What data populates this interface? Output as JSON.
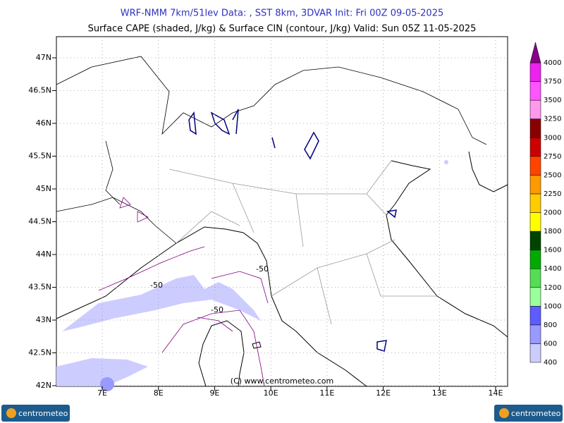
{
  "header": {
    "title": "WRF-NMM 7km/51lev  Data: , SST 8km, 3DVAR  Init: Fri 00Z 09-05-2025",
    "subtitle": "Surface CAPE (shaded, J/kg) & Surface CIN (contour, J/kg)  Valid: Sun 05Z 11-05-2025"
  },
  "axes": {
    "lat_labels": [
      "47N",
      "46.5N",
      "46N",
      "45.5N",
      "45N",
      "44.5N",
      "44N",
      "43.5N",
      "43N",
      "42.5N",
      "42N"
    ],
    "lon_labels": [
      "7E",
      "8E",
      "9E",
      "10E",
      "11E",
      "12E",
      "13E",
      "14E"
    ]
  },
  "colorbar": {
    "levels": [
      400,
      600,
      800,
      1000,
      1200,
      1400,
      1600,
      1800,
      2000,
      2250,
      2500,
      2750,
      3000,
      3250,
      3500,
      3750,
      4000
    ],
    "colors": [
      "#ccccff",
      "#9999ff",
      "#5c5cff",
      "#99ff99",
      "#55dd55",
      "#00aa00",
      "#004400",
      "#ffff00",
      "#ffcc00",
      "#ff9900",
      "#ff4400",
      "#cc0000",
      "#880000",
      "#ff99ee",
      "#ff55ff",
      "#ee22ee"
    ],
    "over_color": "#880088"
  },
  "contour_labels": [
    "-50",
    "-50",
    "-50"
  ],
  "copyright": "(C) www.centrometeo.com",
  "logos": [
    "centrometeo",
    "centrometeo"
  ]
}
